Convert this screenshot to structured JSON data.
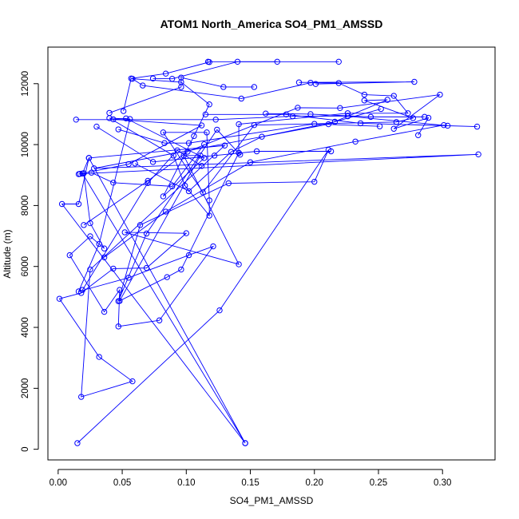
{
  "chart_data": {
    "type": "line",
    "title": "ATOM1 North_America SO4_PM1_AMSSD",
    "xlabel": "SO4_PM1_AMSSD",
    "ylabel": "Altitude (m)",
    "xlim": [
      -0.008,
      0.341
    ],
    "ylim": [
      -350,
      13200
    ],
    "xticks": [
      0.0,
      0.05,
      0.1,
      0.15,
      0.2,
      0.25,
      0.3
    ],
    "xtick_labels": [
      "0.00",
      "0.05",
      "0.10",
      "0.15",
      "0.20",
      "0.25",
      "0.30"
    ],
    "yticks": [
      0,
      2000,
      4000,
      6000,
      8000,
      10000,
      12000
    ],
    "ytick_labels": [
      "0",
      "2000",
      "4000",
      "6000",
      "8000",
      "10000",
      "12000"
    ],
    "grid": false,
    "color": "#0000ff",
    "series": [
      {
        "points": [
          {
            "x": 0.146,
            "y": 200
          },
          {
            "x": 0.024,
            "y": 9560
          },
          {
            "x": 0.016,
            "y": 8050
          },
          {
            "x": 0.003,
            "y": 8050
          },
          {
            "x": 0.146,
            "y": 200
          },
          {
            "x": 0.019,
            "y": 9050
          },
          {
            "x": 0.024,
            "y": 9560
          },
          {
            "x": 0.13,
            "y": 9970
          },
          {
            "x": 0.025,
            "y": 5900
          },
          {
            "x": 0.018,
            "y": 1720
          },
          {
            "x": 0.058,
            "y": 2230
          },
          {
            "x": 0.032,
            "y": 3030
          },
          {
            "x": 0.001,
            "y": 4940
          },
          {
            "x": 0.018,
            "y": 5130
          },
          {
            "x": 0.043,
            "y": 5930
          },
          {
            "x": 0.069,
            "y": 5950
          },
          {
            "x": 0.1,
            "y": 7090
          },
          {
            "x": 0.052,
            "y": 7120
          },
          {
            "x": 0.141,
            "y": 6070
          },
          {
            "x": 0.098,
            "y": 9640
          },
          {
            "x": 0.111,
            "y": 9640
          },
          {
            "x": 0.048,
            "y": 4870
          },
          {
            "x": 0.085,
            "y": 5650
          },
          {
            "x": 0.096,
            "y": 5900
          },
          {
            "x": 0.141,
            "y": 9730
          },
          {
            "x": 0.142,
            "y": 9670
          },
          {
            "x": 0.124,
            "y": 10490
          },
          {
            "x": 0.069,
            "y": 7080
          },
          {
            "x": 0.047,
            "y": 4860
          },
          {
            "x": 0.064,
            "y": 7360
          },
          {
            "x": 0.133,
            "y": 8730
          },
          {
            "x": 0.2,
            "y": 8780
          },
          {
            "x": 0.211,
            "y": 9830
          },
          {
            "x": 0.126,
            "y": 4560
          },
          {
            "x": 0.015,
            "y": 200
          }
        ]
      },
      {
        "points": [
          {
            "x": 0.016,
            "y": 9030
          },
          {
            "x": 0.055,
            "y": 9360
          },
          {
            "x": 0.112,
            "y": 10630
          },
          {
            "x": 0.043,
            "y": 10830
          },
          {
            "x": 0.053,
            "y": 10860
          },
          {
            "x": 0.114,
            "y": 9560
          },
          {
            "x": 0.082,
            "y": 8300
          },
          {
            "x": 0.106,
            "y": 10280
          },
          {
            "x": 0.118,
            "y": 11320
          },
          {
            "x": 0.096,
            "y": 12050
          },
          {
            "x": 0.058,
            "y": 12160
          },
          {
            "x": 0.066,
            "y": 11940
          },
          {
            "x": 0.143,
            "y": 11510
          },
          {
            "x": 0.197,
            "y": 12030
          },
          {
            "x": 0.219,
            "y": 12020
          },
          {
            "x": 0.239,
            "y": 11640
          },
          {
            "x": 0.262,
            "y": 11600
          },
          {
            "x": 0.273,
            "y": 11030
          },
          {
            "x": 0.226,
            "y": 11030
          },
          {
            "x": 0.141,
            "y": 10670
          },
          {
            "x": 0.141,
            "y": 9730
          }
        ]
      },
      {
        "points": [
          {
            "x": 0.017,
            "y": 9040
          },
          {
            "x": 0.328,
            "y": 9680
          },
          {
            "x": 0.028,
            "y": 9220
          },
          {
            "x": 0.211,
            "y": 10670
          },
          {
            "x": 0.257,
            "y": 11470
          },
          {
            "x": 0.239,
            "y": 11450
          },
          {
            "x": 0.277,
            "y": 10870
          },
          {
            "x": 0.264,
            "y": 10740
          },
          {
            "x": 0.153,
            "y": 10640
          },
          {
            "x": 0.113,
            "y": 8430
          },
          {
            "x": 0.082,
            "y": 10400
          },
          {
            "x": 0.116,
            "y": 10400
          },
          {
            "x": 0.118,
            "y": 8170
          },
          {
            "x": 0.118,
            "y": 7670
          },
          {
            "x": 0.099,
            "y": 8650
          },
          {
            "x": 0.09,
            "y": 9640
          },
          {
            "x": 0.04,
            "y": 10870
          },
          {
            "x": 0.056,
            "y": 10840
          },
          {
            "x": 0.032,
            "y": 6740
          },
          {
            "x": 0.016,
            "y": 5180
          },
          {
            "x": 0.055,
            "y": 5630
          },
          {
            "x": 0.102,
            "y": 6370
          },
          {
            "x": 0.121,
            "y": 6660
          },
          {
            "x": 0.079,
            "y": 4230
          },
          {
            "x": 0.047,
            "y": 4030
          },
          {
            "x": 0.048,
            "y": 5230
          },
          {
            "x": 0.036,
            "y": 4510
          },
          {
            "x": 0.009,
            "y": 6370
          },
          {
            "x": 0.025,
            "y": 6990
          },
          {
            "x": 0.036,
            "y": 6590
          },
          {
            "x": 0.025,
            "y": 7420
          },
          {
            "x": 0.02,
            "y": 9060
          }
        ]
      },
      {
        "points": [
          {
            "x": 0.051,
            "y": 11100
          },
          {
            "x": 0.057,
            "y": 12170
          },
          {
            "x": 0.084,
            "y": 12330
          },
          {
            "x": 0.118,
            "y": 12710
          },
          {
            "x": 0.117,
            "y": 12720
          },
          {
            "x": 0.219,
            "y": 12720
          }
        ]
      },
      {
        "points": [
          {
            "x": 0.04,
            "y": 11040
          },
          {
            "x": 0.096,
            "y": 11890
          },
          {
            "x": 0.096,
            "y": 12200
          },
          {
            "x": 0.129,
            "y": 11890
          },
          {
            "x": 0.153,
            "y": 11890
          }
        ]
      },
      {
        "points": [
          {
            "x": 0.014,
            "y": 10820
          },
          {
            "x": 0.123,
            "y": 10820
          },
          {
            "x": 0.183,
            "y": 10930
          },
          {
            "x": 0.226,
            "y": 10930
          },
          {
            "x": 0.304,
            "y": 10620
          },
          {
            "x": 0.327,
            "y": 10590
          },
          {
            "x": 0.236,
            "y": 10700
          },
          {
            "x": 0.178,
            "y": 10990
          },
          {
            "x": 0.115,
            "y": 10990
          }
        ]
      },
      {
        "points": [
          {
            "x": 0.188,
            "y": 12040
          },
          {
            "x": 0.278,
            "y": 12060
          },
          {
            "x": 0.201,
            "y": 11990
          }
        ]
      },
      {
        "points": [
          {
            "x": 0.02,
            "y": 7360
          },
          {
            "x": 0.07,
            "y": 8810
          },
          {
            "x": 0.101,
            "y": 9770
          },
          {
            "x": 0.187,
            "y": 11210
          },
          {
            "x": 0.22,
            "y": 11200
          },
          {
            "x": 0.298,
            "y": 11640
          },
          {
            "x": 0.262,
            "y": 10520
          },
          {
            "x": 0.289,
            "y": 10880
          },
          {
            "x": 0.281,
            "y": 10310
          }
        ]
      },
      {
        "points": [
          {
            "x": 0.03,
            "y": 10590
          },
          {
            "x": 0.074,
            "y": 9430
          },
          {
            "x": 0.122,
            "y": 9640
          },
          {
            "x": 0.155,
            "y": 9780
          },
          {
            "x": 0.213,
            "y": 9780
          }
        ]
      },
      {
        "points": [
          {
            "x": 0.047,
            "y": 10500
          },
          {
            "x": 0.083,
            "y": 10050
          },
          {
            "x": 0.102,
            "y": 10050
          },
          {
            "x": 0.2,
            "y": 10680
          },
          {
            "x": 0.251,
            "y": 10600
          }
        ]
      },
      {
        "points": [
          {
            "x": 0.06,
            "y": 9380
          },
          {
            "x": 0.102,
            "y": 8470
          },
          {
            "x": 0.135,
            "y": 9760
          },
          {
            "x": 0.159,
            "y": 10260
          },
          {
            "x": 0.216,
            "y": 10750
          },
          {
            "x": 0.252,
            "y": 11170
          }
        ]
      },
      {
        "points": [
          {
            "x": 0.019,
            "y": 5230
          },
          {
            "x": 0.07,
            "y": 8740
          },
          {
            "x": 0.093,
            "y": 9810
          },
          {
            "x": 0.112,
            "y": 9300
          }
        ]
      },
      {
        "points": [
          {
            "x": 0.036,
            "y": 6300
          },
          {
            "x": 0.084,
            "y": 7800
          },
          {
            "x": 0.15,
            "y": 9420
          },
          {
            "x": 0.232,
            "y": 10100
          },
          {
            "x": 0.301,
            "y": 10640
          }
        ]
      },
      {
        "points": [
          {
            "x": 0.074,
            "y": 12170
          },
          {
            "x": 0.089,
            "y": 12160
          },
          {
            "x": 0.14,
            "y": 12720
          },
          {
            "x": 0.171,
            "y": 12720
          }
        ]
      },
      {
        "points": [
          {
            "x": 0.026,
            "y": 9080
          },
          {
            "x": 0.043,
            "y": 8750
          },
          {
            "x": 0.089,
            "y": 8630
          },
          {
            "x": 0.114,
            "y": 10010
          }
        ]
      },
      {
        "points": [
          {
            "x": 0.162,
            "y": 11020
          },
          {
            "x": 0.197,
            "y": 11000
          },
          {
            "x": 0.244,
            "y": 10910
          },
          {
            "x": 0.286,
            "y": 10910
          }
        ]
      }
    ]
  }
}
